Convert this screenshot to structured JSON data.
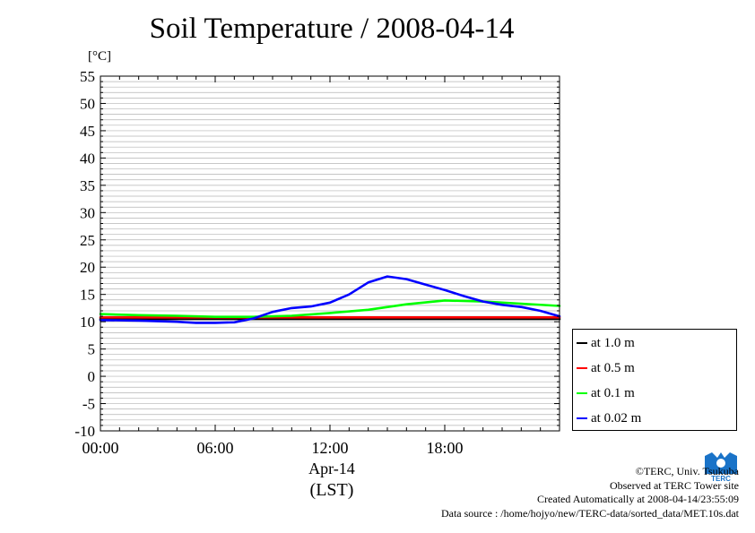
{
  "chart_data": {
    "type": "line",
    "title": "Soil Temperature / 2008-04-14",
    "y_unit": "[°C]",
    "ylim": [
      -10,
      55
    ],
    "yticks": [
      55,
      50,
      45,
      40,
      35,
      30,
      25,
      20,
      15,
      10,
      5,
      0,
      -5,
      -10
    ],
    "xlim": [
      0,
      24
    ],
    "xticks": [
      {
        "value": 0,
        "label": "00:00"
      },
      {
        "value": 6,
        "label": "06:00"
      },
      {
        "value": 12,
        "label": "12:00"
      },
      {
        "value": 18,
        "label": "18:00"
      }
    ],
    "x_date_label": "Apr-14",
    "x_zone_label": "(LST)",
    "grid": true,
    "legend_position": "right-bottom",
    "series": [
      {
        "name": "at 1.0 m",
        "color": "#000000",
        "x": [
          0,
          6,
          12,
          18,
          24
        ],
        "y": [
          10.5,
          10.5,
          10.5,
          10.5,
          10.5
        ]
      },
      {
        "name": "at 0.5 m",
        "color": "#ff0000",
        "x": [
          0,
          6,
          12,
          18,
          24
        ],
        "y": [
          10.8,
          10.8,
          10.8,
          10.8,
          10.8
        ]
      },
      {
        "name": "at 0.1 m",
        "color": "#00ff00",
        "x": [
          0,
          2,
          4,
          6,
          8,
          10,
          12,
          14,
          16,
          18,
          20,
          22,
          24
        ],
        "y": [
          11.4,
          11.2,
          11.1,
          10.9,
          10.9,
          11.1,
          11.6,
          12.2,
          13.2,
          13.9,
          13.7,
          13.3,
          12.9
        ]
      },
      {
        "name": "at 0.02 m",
        "color": "#0000ff",
        "x": [
          0,
          2,
          4,
          5,
          6,
          7,
          8,
          9,
          10,
          11,
          12,
          13,
          14,
          15,
          16,
          17,
          18,
          19,
          20,
          21,
          22,
          23,
          24
        ],
        "y": [
          10.3,
          10.2,
          10.0,
          9.8,
          9.8,
          9.9,
          10.6,
          11.8,
          12.5,
          12.8,
          13.5,
          15.0,
          17.2,
          18.3,
          17.8,
          16.8,
          15.8,
          14.7,
          13.7,
          13.1,
          12.7,
          12.0,
          11.0
        ]
      }
    ]
  },
  "footer": {
    "copyright": "©TERC, Univ. Tsukuba",
    "observed": "Observed at TERC Tower site",
    "created": "Created Automatically at 2008-04-14/23:55:09",
    "source": "Data source : /home/hojyo/new/TERC-data/sorted_data/MET.10s.dat"
  },
  "logo": {
    "text": "TERC",
    "color": "#1a73c8"
  }
}
